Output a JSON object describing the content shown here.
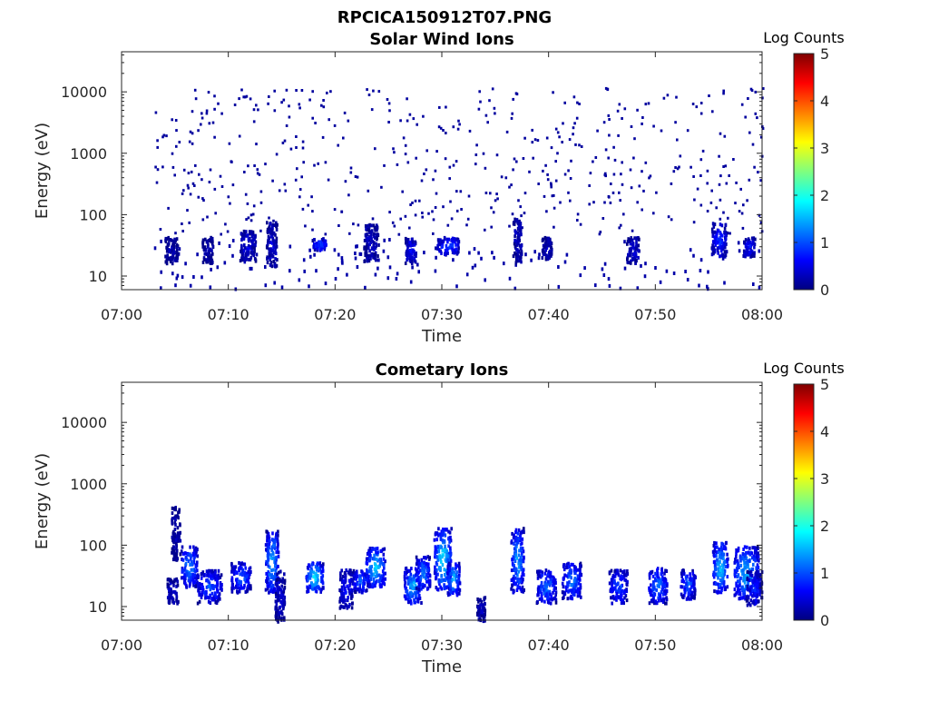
{
  "figure": {
    "filename": "RPCICA150912T07.PNG"
  },
  "colorbar": {
    "label": "Log Counts",
    "ticks": [
      0,
      1,
      2,
      3,
      4,
      5
    ],
    "range": [
      0,
      5
    ],
    "colormap": [
      "#00007f",
      "#0000ff",
      "#007fff",
      "#00ffff",
      "#7fff7f",
      "#ffff00",
      "#ff7f00",
      "#ff0000",
      "#7f0000"
    ]
  },
  "chart_data": [
    {
      "type": "heatmap",
      "title": "Solar Wind Ions",
      "xlabel": "Time",
      "ylabel": "Energy (eV)",
      "x_ticks": [
        "07:00",
        "07:10",
        "07:20",
        "07:30",
        "07:40",
        "07:50",
        "08:00"
      ],
      "x_range_min": [
        0,
        60
      ],
      "y_scale": "log",
      "y_range": [
        6,
        45000
      ],
      "y_ticks": [
        10,
        100,
        1000,
        10000
      ],
      "z_range": [
        0,
        5
      ],
      "grid": false,
      "blobs": [
        {
          "t": [
            4.0,
            5.2
          ],
          "e": [
            17,
            45
          ],
          "z": 0.2
        },
        {
          "t": [
            7.5,
            8.5
          ],
          "e": [
            17,
            45
          ],
          "z": 0.2
        },
        {
          "t": [
            11.0,
            12.5
          ],
          "e": [
            18,
            60
          ],
          "z": 0.4
        },
        {
          "t": [
            13.5,
            14.5
          ],
          "e": [
            15,
            80
          ],
          "z": 0.4
        },
        {
          "t": [
            17.8,
            19.2
          ],
          "e": [
            28,
            42
          ],
          "z": 0.9
        },
        {
          "t": [
            22.6,
            24.0
          ],
          "e": [
            18,
            75
          ],
          "z": 0.3
        },
        {
          "t": [
            26.5,
            27.5
          ],
          "e": [
            17,
            45
          ],
          "z": 0.6
        },
        {
          "t": [
            29.5,
            31.5
          ],
          "e": [
            24,
            45
          ],
          "z": 0.9
        },
        {
          "t": [
            36.6,
            37.4
          ],
          "e": [
            17,
            90
          ],
          "z": 0.3
        },
        {
          "t": [
            39.3,
            40.2
          ],
          "e": [
            20,
            45
          ],
          "z": 0.3
        },
        {
          "t": [
            47.2,
            48.4
          ],
          "e": [
            17,
            45
          ],
          "z": 0.4
        },
        {
          "t": [
            55.2,
            56.6
          ],
          "e": [
            22,
            80
          ],
          "z": 0.7
        },
        {
          "t": [
            58.2,
            59.3
          ],
          "e": [
            22,
            45
          ],
          "z": 0.7
        }
      ]
    },
    {
      "type": "heatmap",
      "title": "Cometary Ions",
      "xlabel": "Time",
      "ylabel": "Energy (eV)",
      "x_ticks": [
        "07:00",
        "07:10",
        "07:20",
        "07:30",
        "07:40",
        "07:50",
        "08:00"
      ],
      "x_range_min": [
        0,
        60
      ],
      "y_scale": "log",
      "y_range": [
        6,
        45000
      ],
      "y_ticks": [
        10,
        100,
        1000,
        10000
      ],
      "z_range": [
        0,
        5
      ],
      "grid": false,
      "blobs": [
        {
          "t": [
            4.2,
            5.2
          ],
          "e": [
            12,
            30
          ],
          "z": 0.4
        },
        {
          "t": [
            4.6,
            5.4
          ],
          "e": [
            60,
            450
          ],
          "z": 0.2
        },
        {
          "t": [
            5.5,
            7.0
          ],
          "e": [
            22,
            100
          ],
          "z": 1.2
        },
        {
          "t": [
            7.0,
            9.3
          ],
          "e": [
            12,
            42
          ],
          "z": 0.9
        },
        {
          "t": [
            10.2,
            12.0
          ],
          "e": [
            18,
            55
          ],
          "z": 1.0
        },
        {
          "t": [
            13.4,
            14.6
          ],
          "e": [
            18,
            180
          ],
          "z": 1.4
        },
        {
          "t": [
            14.3,
            15.2
          ],
          "e": [
            6,
            40
          ],
          "z": 0.4
        },
        {
          "t": [
            17.2,
            18.8
          ],
          "e": [
            18,
            55
          ],
          "z": 1.6
        },
        {
          "t": [
            20.3,
            21.6
          ],
          "e": [
            10,
            42
          ],
          "z": 0.6
        },
        {
          "t": [
            21.6,
            23.0
          ],
          "e": [
            18,
            42
          ],
          "z": 1.0
        },
        {
          "t": [
            22.8,
            24.6
          ],
          "e": [
            22,
            95
          ],
          "z": 1.5
        },
        {
          "t": [
            26.4,
            28.0
          ],
          "e": [
            12,
            45
          ],
          "z": 1.4
        },
        {
          "t": [
            27.5,
            28.8
          ],
          "e": [
            20,
            70
          ],
          "z": 1.2
        },
        {
          "t": [
            29.2,
            30.8
          ],
          "e": [
            20,
            200
          ],
          "z": 1.6
        },
        {
          "t": [
            30.4,
            31.6
          ],
          "e": [
            16,
            55
          ],
          "z": 1.4
        },
        {
          "t": [
            33.2,
            34.0
          ],
          "e": [
            6,
            15
          ],
          "z": 0.3
        },
        {
          "t": [
            36.4,
            37.6
          ],
          "e": [
            18,
            200
          ],
          "z": 1.3
        },
        {
          "t": [
            38.8,
            40.6
          ],
          "e": [
            12,
            42
          ],
          "z": 1.1
        },
        {
          "t": [
            41.2,
            43.0
          ],
          "e": [
            14,
            55
          ],
          "z": 1.1
        },
        {
          "t": [
            45.6,
            47.3
          ],
          "e": [
            12,
            42
          ],
          "z": 0.9
        },
        {
          "t": [
            49.3,
            51.0
          ],
          "e": [
            12,
            45
          ],
          "z": 1.1
        },
        {
          "t": [
            52.3,
            53.7
          ],
          "e": [
            14,
            42
          ],
          "z": 1.0
        },
        {
          "t": [
            55.3,
            56.7
          ],
          "e": [
            18,
            120
          ],
          "z": 1.5
        },
        {
          "t": [
            57.3,
            59.6
          ],
          "e": [
            14,
            100
          ],
          "z": 1.4
        },
        {
          "t": [
            58.4,
            59.9
          ],
          "e": [
            11,
            40
          ],
          "z": 0.7
        }
      ]
    }
  ]
}
